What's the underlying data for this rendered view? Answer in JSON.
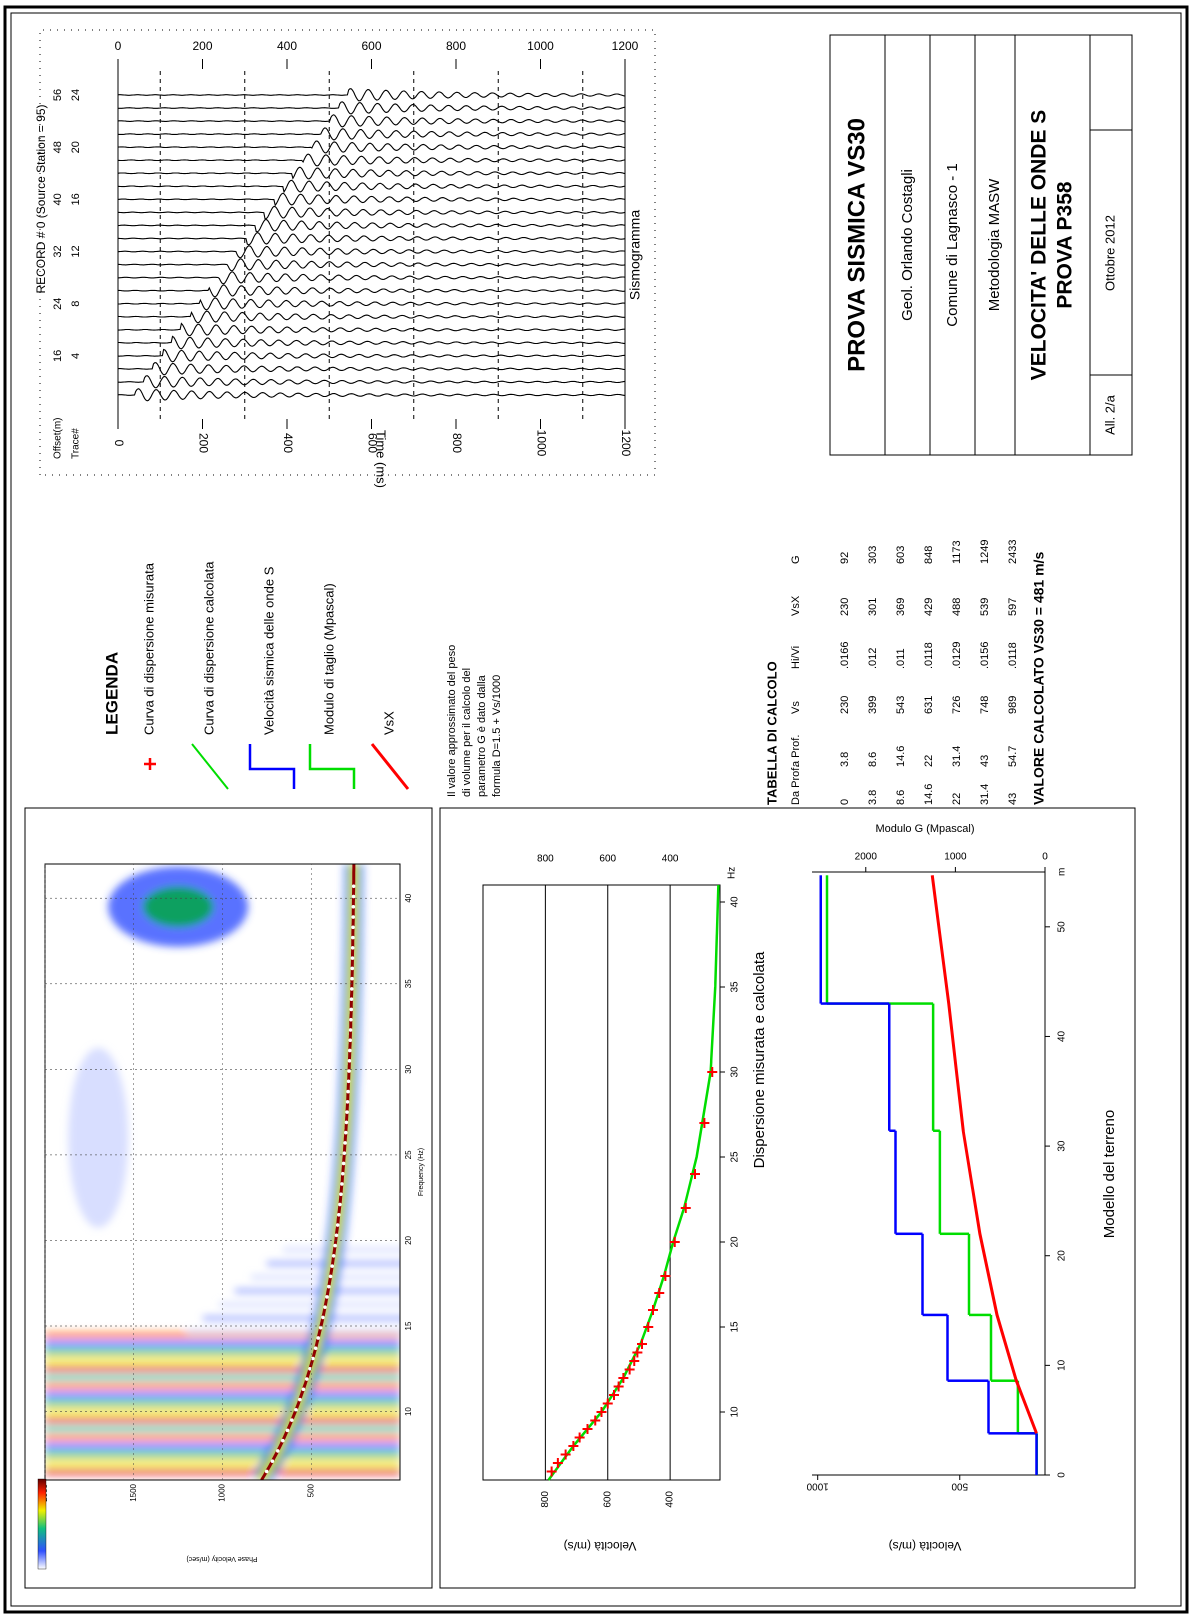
{
  "title_block": {
    "title": "PROVA SISMICA VS30",
    "author": "Geol. Orlando Costagli",
    "location": "Comune di Lagnasco - 1",
    "method": "Metodologia MASW",
    "heading": [
      "VELOCITA' DELLE ONDE S",
      "PROVA P358"
    ],
    "attachment": "All. 2/a",
    "date": "Ottobre 2012"
  },
  "legend": {
    "title": "LEGENDA",
    "items": [
      "Curva di dispersione misurata",
      "Curva di dispersione calcolata",
      "Velocità sismica delle onde S",
      "Modulo di taglio (Mpascal)",
      "VsX"
    ],
    "note": [
      "Il valore approssimato del peso",
      "di volume per il calcolo del",
      "parametro G è dato dalla",
      "formula D=1.5 + Vs/1000"
    ]
  },
  "table": {
    "title": "TABELLA DI CALCOLO",
    "header": [
      "Da Prof.",
      "a Prof.",
      "Vs",
      "Hi/Vi",
      "VsX",
      "G"
    ],
    "rows": [
      [
        0,
        3.8,
        230,
        ".0166",
        230,
        92
      ],
      [
        3.8,
        8.6,
        399,
        ".012",
        301,
        303
      ],
      [
        8.6,
        14.6,
        543,
        ".011",
        369,
        603
      ],
      [
        14.6,
        22,
        631,
        ".0118",
        429,
        848
      ],
      [
        22,
        31.4,
        726,
        ".0129",
        488,
        1173
      ],
      [
        31.4,
        43,
        748,
        ".0156",
        539,
        1249
      ],
      [
        43,
        54.7,
        989,
        ".0118",
        597,
        2433
      ]
    ],
    "result": "VALORE CALCOLATO VS30 =  481 m/s"
  },
  "seismogram": {
    "record": "RECORD # 0 (Source Station = 95)",
    "offset_label": "Offset(m)",
    "trace_label": "Trace#",
    "offsets": [
      16,
      24,
      32,
      40,
      48,
      56
    ],
    "traces": [
      4,
      8,
      12,
      16,
      20,
      24
    ],
    "xlim": [
      0,
      1200
    ],
    "xticks": [
      0,
      200,
      400,
      600,
      800,
      1000,
      1200
    ],
    "x_label": "Time (ms)",
    "caption": "Sismogramma"
  },
  "spectrum": {
    "y_label": "Phase Velocity (m/sec)",
    "ylim": [
      0,
      2000
    ],
    "yticks": [
      500,
      1000,
      1500,
      2000
    ],
    "x_label": "Frequency (Hz)",
    "xlim": [
      6,
      42
    ],
    "xticks": [
      10,
      15,
      20,
      25,
      30,
      35,
      40
    ]
  },
  "dispersion": {
    "type": "line",
    "title": "Dispersione misurata e calcolata",
    "y_label": "Velocità (m/s)",
    "x_unit": "Hz",
    "xlim": [
      6,
      41
    ],
    "xticks": [
      10,
      15,
      20,
      25,
      30,
      35,
      40
    ],
    "ylim": [
      240,
      1000
    ],
    "yticks": [
      400,
      600,
      800
    ],
    "grid": true,
    "series": [
      {
        "color": "#ff0000",
        "marker": "+",
        "x": [
          6.5,
          7,
          7.5,
          8,
          8.5,
          9,
          9.5,
          10,
          10.5,
          11,
          11.5,
          12,
          12.5,
          13,
          13.5,
          14,
          15,
          16,
          17,
          18,
          20,
          22,
          24,
          27,
          30
        ],
        "values": [
          780,
          760,
          735,
          710,
          690,
          665,
          640,
          620,
          600,
          580,
          565,
          550,
          530,
          515,
          505,
          490,
          470,
          455,
          435,
          415,
          385,
          350,
          320,
          290,
          265
        ]
      },
      {
        "color": "#00dd00",
        "x": [
          6,
          8,
          10,
          12,
          14,
          16,
          18,
          20,
          22,
          25,
          30,
          35,
          41
        ],
        "values": [
          790,
          710,
          620,
          550,
          495,
          455,
          420,
          390,
          355,
          315,
          270,
          255,
          245
        ]
      }
    ]
  },
  "model": {
    "type": "step",
    "title": "Modello del terreno",
    "y_label": "Velocità (m/s)",
    "y2_label": "Modulo G (Mpascal)",
    "x_unit": "m",
    "xlim": [
      0,
      55
    ],
    "xticks": [
      0,
      10,
      20,
      30,
      40,
      50
    ],
    "ylim": [
      200,
      1020
    ],
    "yticks": [
      500,
      1000
    ],
    "y2lim": [
      0,
      2600
    ],
    "y2ticks": [
      0,
      1000,
      2000
    ],
    "colors": {
      "vs": "#0000ff",
      "g": "#00dd00",
      "vsx": "#ff0000"
    }
  }
}
